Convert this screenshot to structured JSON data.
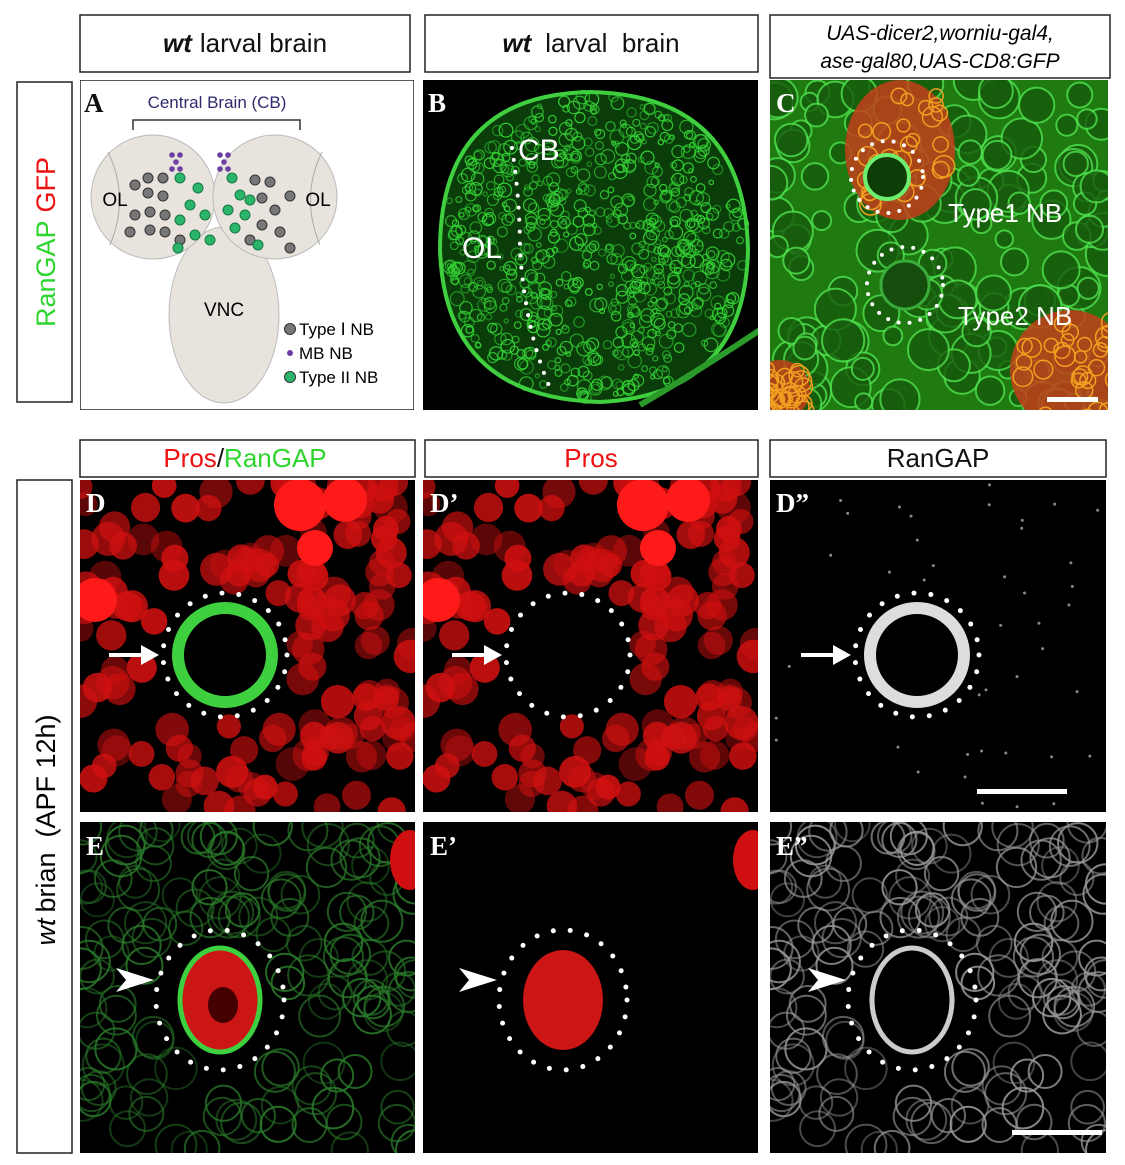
{
  "headers": {
    "top": [
      {
        "italic": "wt",
        "text": "larval brain"
      },
      {
        "italic": "wt",
        "text": "larval  brain"
      },
      {
        "lines": [
          "UAS-dicer2,worniu-gal4,",
          "ase-gal80,UAS-CD8:GFP"
        ]
      }
    ],
    "bottom": [
      {
        "red": "Pros",
        "sep": "/",
        "green": "RanGAP"
      },
      {
        "red": "Pros"
      },
      {
        "plain": "RanGAP"
      }
    ]
  },
  "side_labels": {
    "top": {
      "green": "RanGAP",
      "red": "GFP"
    },
    "bottom": {
      "italic": "wt",
      "text": "brian  (APF 12h)"
    }
  },
  "panel_labels": [
    "A",
    "B",
    "C",
    "D",
    "D’",
    "D”",
    "E",
    "E’",
    "E”"
  ],
  "panel_a": {
    "title": "Central Brain (CB)",
    "lobes": [
      "OL",
      "OL"
    ],
    "vnc": "VNC",
    "legend": [
      "Type Ⅰ NB",
      "MB NB",
      "Type II NB"
    ]
  },
  "panel_b": {
    "regions": [
      "CB",
      "OL"
    ]
  },
  "panel_c": {
    "cells": [
      "Type1 NB",
      "Type2 NB"
    ]
  }
}
